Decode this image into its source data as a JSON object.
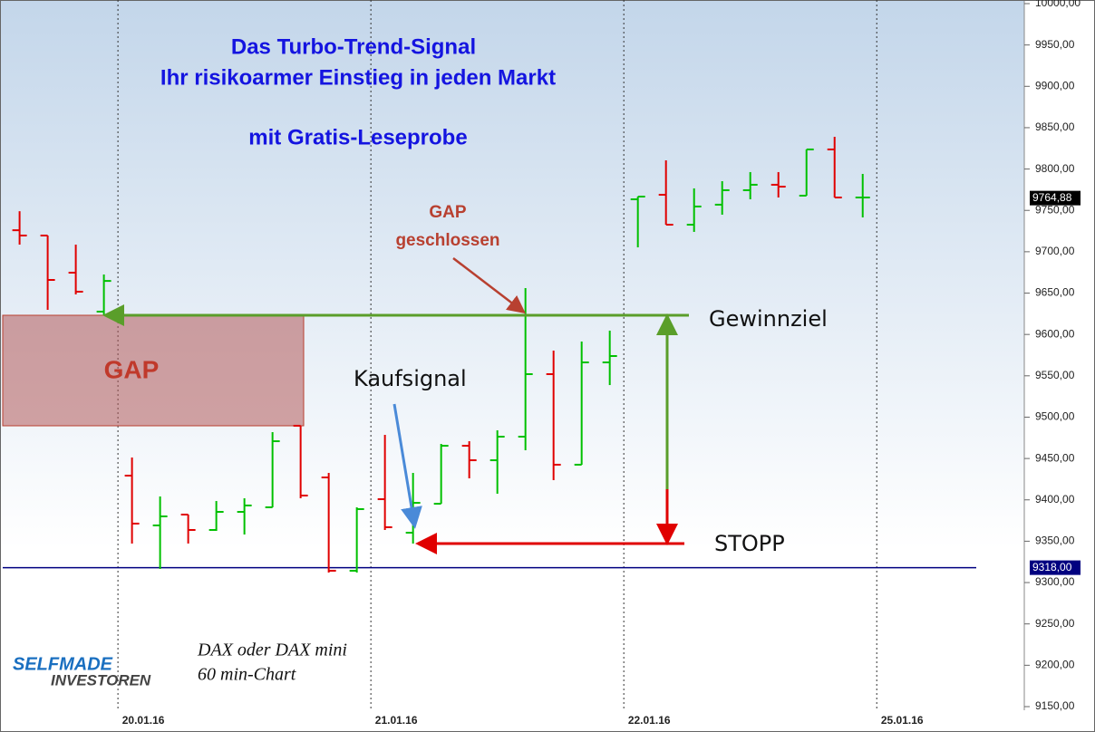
{
  "chart_data": {
    "type": "ohlc",
    "headline": [
      "Das Turbo-Trend-Signal",
      "Ihr risikoarmer Einstieg in jeden Markt",
      "mit Gratis-Leseprobe"
    ],
    "annotations": {
      "gap": "GAP",
      "gap_closed": [
        "GAP",
        "geschlossen"
      ],
      "target": "Gewinnziel",
      "signal": "Kaufsignal",
      "stop": "STOPP"
    },
    "caption": [
      "DAX oder DAX mini",
      "60 min-Chart"
    ],
    "logo": [
      "SELFMADE",
      "INVESTOREN"
    ],
    "up_color": "#00c000",
    "down_color": "#e00000",
    "open": [
      9726,
      9719.6,
      9674.7,
      9627.6,
      9429.3,
      9369.1,
      9382.2,
      9363.6,
      9385.5,
      9391,
      9489.6,
      9427.1,
      9314.3,
      9400.8,
      9360.3,
      9395.3,
      9465.4,
      9447.9,
      9476.4,
      9552,
      9442.5,
      9566.2,
      9763.4,
      9768.9,
      9732.7,
      9756.9,
      9774.4,
      9781,
      9767.8,
      9823.7,
      9765.6
    ],
    "high": [
      9749,
      9719.6,
      9708.6,
      9672.5,
      9451.2,
      9404.1,
      9382.2,
      9398.6,
      9401.9,
      9481.9,
      9489.6,
      9432.6,
      9391,
      9478.6,
      9432.6,
      9467.6,
      9470.9,
      9484.1,
      9656,
      9580.5,
      9591.4,
      9604.6,
      9766.7,
      9810.5,
      9776.6,
      9785.3,
      9796.3,
      9796.3,
      9823.7,
      9839,
      9794.1
    ],
    "low": [
      9708.6,
      9629.8,
      9648.4,
      9623.2,
      9347.2,
      9316.5,
      9347.2,
      9362.5,
      9358.1,
      9391,
      9401.9,
      9312.1,
      9312.1,
      9363.6,
      9347.2,
      9395.3,
      9426,
      9407.4,
      9460,
      9423.8,
      9442.5,
      9538.8,
      9705.3,
      9732.7,
      9724,
      9744.8,
      9763.4,
      9765.6,
      9767.8,
      9765.6,
      9741.5
    ],
    "close": [
      9719.6,
      9665.9,
      9651.7,
      9664.7,
      9371.3,
      9380,
      9363.6,
      9385.5,
      9393.2,
      9470.9,
      9405.2,
      9314.3,
      9388.8,
      9366.9,
      9396.4,
      9465.4,
      9447.9,
      9476.4,
      9552,
      9442.5,
      9566.2,
      9573.9,
      9766.7,
      9732.7,
      9754.7,
      9774.4,
      9781,
      9778.7,
      9823.7,
      9765.6,
      9765.6
    ],
    "xlim": [
      -0.6,
      35.75
    ],
    "xticks": [
      {
        "value": 3.5,
        "label": "20.01.16"
      },
      {
        "value": 12.5,
        "label": "21.01.16"
      },
      {
        "value": 21.5,
        "label": "22.01.16"
      },
      {
        "value": 30.5,
        "label": "25.01.16"
      }
    ],
    "ylim": [
      9145.6,
      10000
    ],
    "yticks": [
      {
        "value": 9150,
        "label": "9150,00"
      },
      {
        "value": 9200,
        "label": "9200,00"
      },
      {
        "value": 9250,
        "label": "9250,00"
      },
      {
        "value": 9300,
        "label": "9300,00"
      },
      {
        "value": 9350,
        "label": "9350,00"
      },
      {
        "value": 9400,
        "label": "9400,00"
      },
      {
        "value": 9450,
        "label": "9450,00"
      },
      {
        "value": 9500,
        "label": "9500,00"
      },
      {
        "value": 9550,
        "label": "9550,00"
      },
      {
        "value": 9600,
        "label": "9600,00"
      },
      {
        "value": 9650,
        "label": "9650,00"
      },
      {
        "value": 9700,
        "label": "9700,00"
      },
      {
        "value": 9750,
        "label": "9750,00"
      },
      {
        "value": 9800,
        "label": "9800,00"
      },
      {
        "value": 9850,
        "label": "9850,00"
      },
      {
        "value": 9900,
        "label": "9900,00"
      },
      {
        "value": 9950,
        "label": "9950,00"
      },
      {
        "value": 10000,
        "label": "10000,00"
      }
    ],
    "support": {
      "value": 9318,
      "label": "9318,00",
      "color": "#000080"
    },
    "last": {
      "value": 9764.88,
      "label": "9764,88"
    }
  }
}
